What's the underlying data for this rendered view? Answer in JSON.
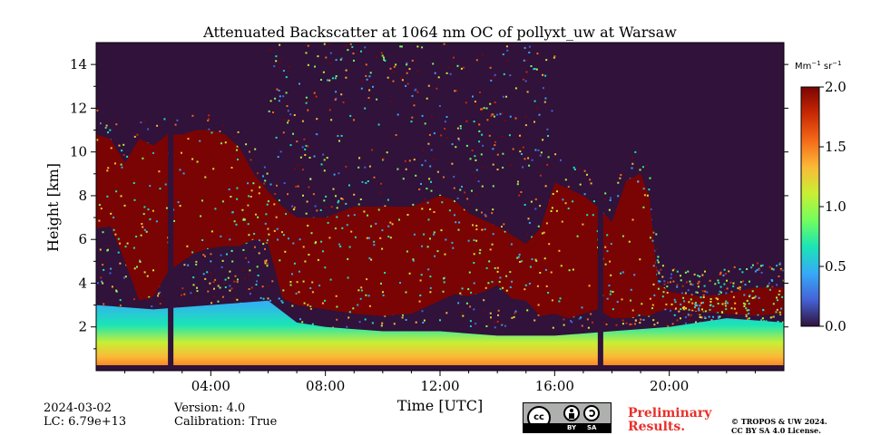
{
  "chart_data": {
    "type": "heatmap",
    "title": "Attenuated Backscatter at 1064 nm OC of pollyxt_uw at Warsaw",
    "xlabel": "Time [UTC]",
    "ylabel": "Height [km]",
    "x_range_hours": [
      0,
      24
    ],
    "y_range_km": [
      0,
      15
    ],
    "x_ticks": [
      {
        "value": 4,
        "label": "04:00"
      },
      {
        "value": 8,
        "label": "08:00"
      },
      {
        "value": 12,
        "label": "12:00"
      },
      {
        "value": 16,
        "label": "16:00"
      },
      {
        "value": 20,
        "label": "20:00"
      }
    ],
    "y_ticks": [
      {
        "value": 2,
        "label": "2"
      },
      {
        "value": 4,
        "label": "4"
      },
      {
        "value": 6,
        "label": "6"
      },
      {
        "value": 8,
        "label": "8"
      },
      {
        "value": 10,
        "label": "10"
      },
      {
        "value": 12,
        "label": "12"
      },
      {
        "value": 14,
        "label": "14"
      }
    ],
    "colorbar": {
      "unit_main": "Mm",
      "unit_exp1": "−1",
      "unit_mid": " sr",
      "unit_exp2": "−1",
      "range": [
        0.0,
        2.0
      ],
      "ticks": [
        {
          "value": 0.0,
          "label": "0.0"
        },
        {
          "value": 0.5,
          "label": "0.5"
        },
        {
          "value": 1.0,
          "label": "1.0"
        },
        {
          "value": 1.5,
          "label": "1.5"
        },
        {
          "value": 2.0,
          "label": "2.0"
        }
      ],
      "colormap": [
        "#30123b",
        "#4662d8",
        "#35abf8",
        "#1be5b5",
        "#74fe5d",
        "#c9ef34",
        "#fbb938",
        "#f56918",
        "#c92903",
        "#7a0403"
      ]
    },
    "cloud_top_km": [
      [
        0,
        10.8
      ],
      [
        0.5,
        10.6
      ],
      [
        1,
        9.5
      ],
      [
        1.5,
        10.6
      ],
      [
        2,
        10.3
      ],
      [
        2.5,
        10.8
      ],
      [
        3,
        10.8
      ],
      [
        3.5,
        11.0
      ],
      [
        4,
        11.0
      ],
      [
        4.5,
        10.8
      ],
      [
        5,
        10.2
      ],
      [
        5.5,
        9.0
      ],
      [
        6,
        8.2
      ],
      [
        6.5,
        7.5
      ],
      [
        7,
        7.0
      ],
      [
        8,
        7.0
      ],
      [
        9,
        7.5
      ],
      [
        10,
        7.5
      ],
      [
        11,
        7.5
      ],
      [
        12,
        8.0
      ],
      [
        12.5,
        7.8
      ],
      [
        13,
        7.2
      ],
      [
        13.5,
        6.9
      ],
      [
        14,
        6.6
      ],
      [
        14.5,
        6.2
      ],
      [
        15,
        5.8
      ],
      [
        15.5,
        6.5
      ],
      [
        16,
        8.6
      ],
      [
        16.5,
        8.3
      ],
      [
        17,
        8.0
      ],
      [
        17.5,
        7.5
      ],
      [
        18,
        6.8
      ],
      [
        18.5,
        8.7
      ],
      [
        19,
        9.0
      ],
      [
        19.3,
        8.0
      ],
      [
        19.6,
        4.0
      ],
      [
        20,
        3.6
      ],
      [
        21,
        3.4
      ],
      [
        22,
        3.5
      ],
      [
        23,
        3.8
      ],
      [
        24,
        3.8
      ]
    ],
    "cloud_base_km": [
      [
        0,
        6.5
      ],
      [
        0.5,
        6.6
      ],
      [
        1,
        5.0
      ],
      [
        1.5,
        3.2
      ],
      [
        2,
        3.4
      ],
      [
        2.5,
        4.5
      ],
      [
        3,
        5.0
      ],
      [
        3.5,
        5.4
      ],
      [
        4,
        5.6
      ],
      [
        4.5,
        5.7
      ],
      [
        5,
        5.7
      ],
      [
        5.5,
        6.0
      ],
      [
        6,
        5.8
      ],
      [
        6.5,
        3.3
      ],
      [
        7,
        3.0
      ],
      [
        8,
        2.8
      ],
      [
        9,
        2.6
      ],
      [
        10,
        2.5
      ],
      [
        11,
        2.6
      ],
      [
        12,
        3.2
      ],
      [
        12.5,
        3.5
      ],
      [
        13,
        3.4
      ],
      [
        13.5,
        3.6
      ],
      [
        14,
        3.9
      ],
      [
        14.5,
        3.3
      ],
      [
        15,
        3.2
      ],
      [
        15.5,
        2.5
      ],
      [
        16,
        2.6
      ],
      [
        16.5,
        2.4
      ],
      [
        17,
        2.6
      ],
      [
        17.5,
        2.8
      ],
      [
        18,
        2.4
      ],
      [
        18.5,
        2.4
      ],
      [
        19,
        2.5
      ],
      [
        19.3,
        2.5
      ],
      [
        19.6,
        2.7
      ],
      [
        20,
        2.8
      ],
      [
        21,
        2.7
      ],
      [
        22,
        2.6
      ],
      [
        23,
        2.5
      ],
      [
        24,
        2.6
      ]
    ],
    "aerosol_layer_top_km": [
      [
        0,
        3.0
      ],
      [
        2,
        2.8
      ],
      [
        4,
        3.0
      ],
      [
        6,
        3.2
      ],
      [
        7,
        2.2
      ],
      [
        8,
        2.0
      ],
      [
        10,
        1.8
      ],
      [
        12,
        1.8
      ],
      [
        14,
        1.6
      ],
      [
        16,
        1.6
      ],
      [
        18,
        1.8
      ],
      [
        20,
        2.0
      ],
      [
        22,
        2.4
      ],
      [
        24,
        2.2
      ]
    ],
    "no_data_time_hours": [
      2.6,
      17.6
    ]
  },
  "footer": {
    "date": "2024-03-02",
    "lc": "LC: 6.79e+13",
    "version": "Version: 4.0",
    "calibration": "Calibration: True",
    "preliminary_line1": "Preliminary",
    "preliminary_line2": "Results.",
    "license_line1": "© TROPOS & UW 2024.",
    "license_line2": "CC BY SA 4.0 License.",
    "cc_by": "BY",
    "cc_sa": "SA"
  }
}
